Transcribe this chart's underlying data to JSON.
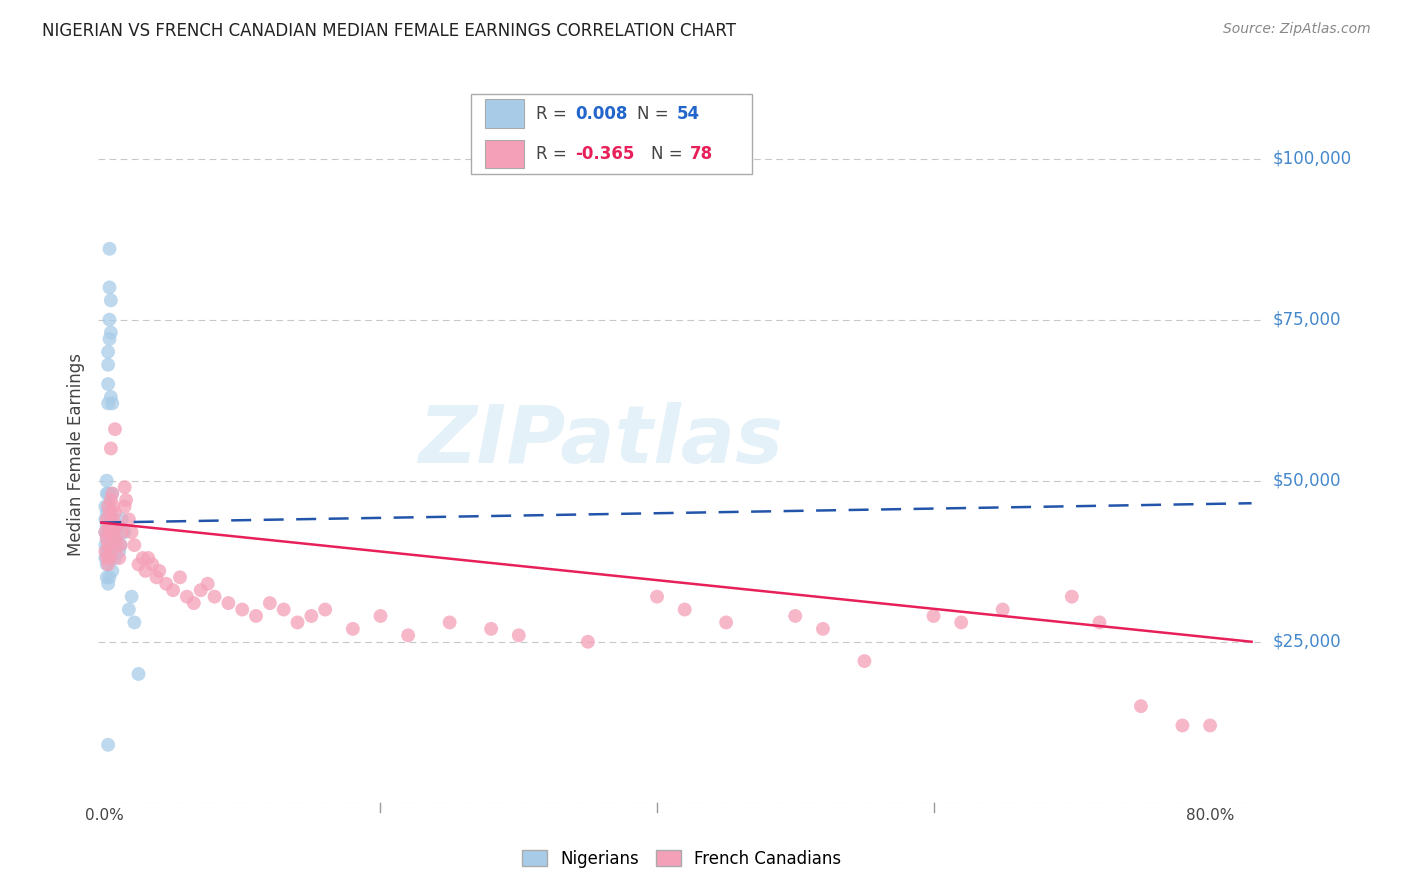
{
  "title": "NIGERIAN VS FRENCH CANADIAN MEDIAN FEMALE EARNINGS CORRELATION CHART",
  "source": "Source: ZipAtlas.com",
  "ylabel": "Median Female Earnings",
  "watermark": "ZIPatlas",
  "y_ticks": [
    0,
    25000,
    50000,
    75000,
    100000
  ],
  "y_tick_labels": [
    "",
    "$25,000",
    "$50,000",
    "$75,000",
    "$100,000"
  ],
  "ylim": [
    0,
    108000
  ],
  "xlim": [
    -0.004,
    0.84
  ],
  "background_color": "#ffffff",
  "grid_color": "#c8c8c8",
  "nigerian_color": "#a8cce8",
  "french_color": "#f4a0b8",
  "nigerian_line_color": "#2255aa",
  "nigerian_line_dash": true,
  "french_line_color": "#e8205a",
  "tick_label_color": "#4488cc",
  "title_color": "#222222",
  "source_color": "#888888",
  "ylabel_color": "#444444",
  "xlabel_color": "#444444",
  "nigerian_scatter_x": [
    0.001,
    0.001,
    0.001,
    0.001,
    0.001,
    0.002,
    0.002,
    0.002,
    0.002,
    0.002,
    0.002,
    0.002,
    0.002,
    0.003,
    0.003,
    0.003,
    0.003,
    0.003,
    0.003,
    0.003,
    0.003,
    0.003,
    0.003,
    0.004,
    0.004,
    0.004,
    0.004,
    0.004,
    0.004,
    0.004,
    0.005,
    0.005,
    0.005,
    0.005,
    0.006,
    0.006,
    0.006,
    0.006,
    0.007,
    0.007,
    0.008,
    0.008,
    0.009,
    0.01,
    0.011,
    0.012,
    0.013,
    0.015,
    0.018,
    0.02,
    0.022,
    0.025,
    0.003,
    0.005
  ],
  "nigerian_scatter_y": [
    42000,
    44000,
    40000,
    38000,
    46000,
    50000,
    48000,
    45000,
    43000,
    41000,
    39000,
    37000,
    35000,
    65000,
    70000,
    68000,
    62000,
    48000,
    46000,
    44000,
    42000,
    40000,
    34000,
    86000,
    80000,
    75000,
    72000,
    42000,
    39000,
    35000,
    78000,
    73000,
    45000,
    38000,
    62000,
    48000,
    42000,
    36000,
    43000,
    39000,
    42000,
    38000,
    41000,
    43000,
    39000,
    40000,
    44000,
    42000,
    30000,
    32000,
    28000,
    20000,
    9000,
    63000
  ],
  "french_scatter_x": [
    0.001,
    0.001,
    0.002,
    0.002,
    0.002,
    0.003,
    0.003,
    0.003,
    0.003,
    0.004,
    0.004,
    0.004,
    0.005,
    0.005,
    0.005,
    0.006,
    0.006,
    0.007,
    0.007,
    0.008,
    0.008,
    0.009,
    0.01,
    0.011,
    0.012,
    0.013,
    0.015,
    0.015,
    0.016,
    0.018,
    0.02,
    0.022,
    0.025,
    0.028,
    0.03,
    0.032,
    0.035,
    0.038,
    0.04,
    0.045,
    0.05,
    0.055,
    0.06,
    0.065,
    0.07,
    0.075,
    0.08,
    0.09,
    0.1,
    0.11,
    0.12,
    0.13,
    0.14,
    0.15,
    0.16,
    0.18,
    0.2,
    0.22,
    0.25,
    0.28,
    0.3,
    0.35,
    0.4,
    0.42,
    0.45,
    0.5,
    0.52,
    0.55,
    0.6,
    0.62,
    0.65,
    0.7,
    0.72,
    0.75,
    0.78,
    0.8,
    0.005,
    0.008
  ],
  "french_scatter_y": [
    42000,
    39000,
    44000,
    41000,
    38000,
    46000,
    43000,
    40000,
    37000,
    45000,
    42000,
    38000,
    47000,
    43000,
    39000,
    48000,
    44000,
    46000,
    42000,
    45000,
    41000,
    40000,
    43000,
    38000,
    40000,
    42000,
    49000,
    46000,
    47000,
    44000,
    42000,
    40000,
    37000,
    38000,
    36000,
    38000,
    37000,
    35000,
    36000,
    34000,
    33000,
    35000,
    32000,
    31000,
    33000,
    34000,
    32000,
    31000,
    30000,
    29000,
    31000,
    30000,
    28000,
    29000,
    30000,
    27000,
    29000,
    26000,
    28000,
    27000,
    26000,
    25000,
    32000,
    30000,
    28000,
    29000,
    27000,
    22000,
    29000,
    28000,
    30000,
    32000,
    28000,
    15000,
    12000,
    12000,
    55000,
    58000
  ],
  "nigerian_trend_x0": -0.002,
  "nigerian_trend_x1": 0.83,
  "nigerian_trend_y0": 43500,
  "nigerian_trend_y1": 46500,
  "french_trend_x0": -0.002,
  "french_trend_x1": 0.83,
  "french_trend_y0": 43500,
  "french_trend_y1": 25000
}
